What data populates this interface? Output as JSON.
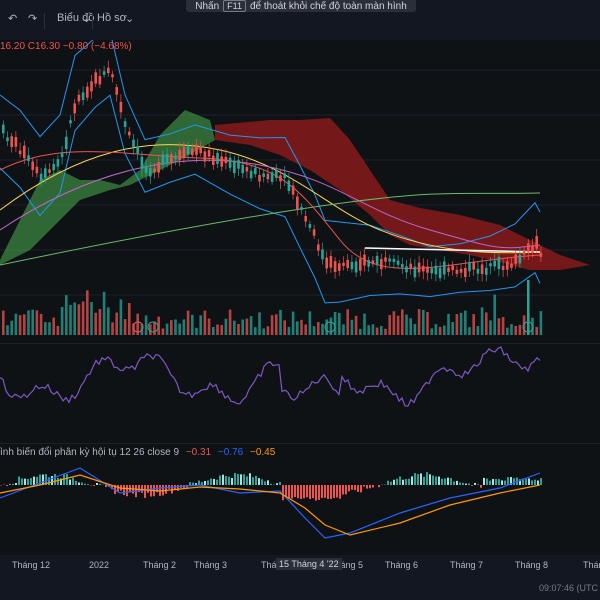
{
  "toolbar": {
    "undo_icon": "undo-icon",
    "redo_icon": "redo-icon",
    "chart_button": "Biểu đồ",
    "profile_button": "Hồ sơ"
  },
  "fullscreen_banner": {
    "prefix": "Nhấn",
    "key": "F11",
    "suffix": "để thoát khỏi chế độ toàn màn hình"
  },
  "ohlc": {
    "text": "16.20  C16.30  −0.80 (−4.68%)"
  },
  "macd_legend": {
    "label": "ình biến đổi phân kỳ hội tụ 12 26 close 9",
    "value1": "−0.31",
    "value2": "−0.76",
    "value3": "−0.45"
  },
  "time_axis": {
    "labels": [
      "Tháng 12",
      "2022",
      "Tháng 2",
      "Tháng 3",
      "Thá",
      "Tháng 5",
      "Tháng 6",
      "Tháng 7",
      "Tháng 8",
      "Tháng"
    ],
    "crosshair_label": "15 Tháng 4 '22"
  },
  "clock": "09:07:46 (UTC",
  "colors": {
    "background": "#0f1215",
    "up": "#26a69a",
    "down": "#ef5350",
    "cloud_green": "#4caf50",
    "cloud_red": "#b71c1c",
    "rsi": "#7e57c2",
    "macd_line": "#2962ff",
    "signal_line": "#ff9800"
  }
}
